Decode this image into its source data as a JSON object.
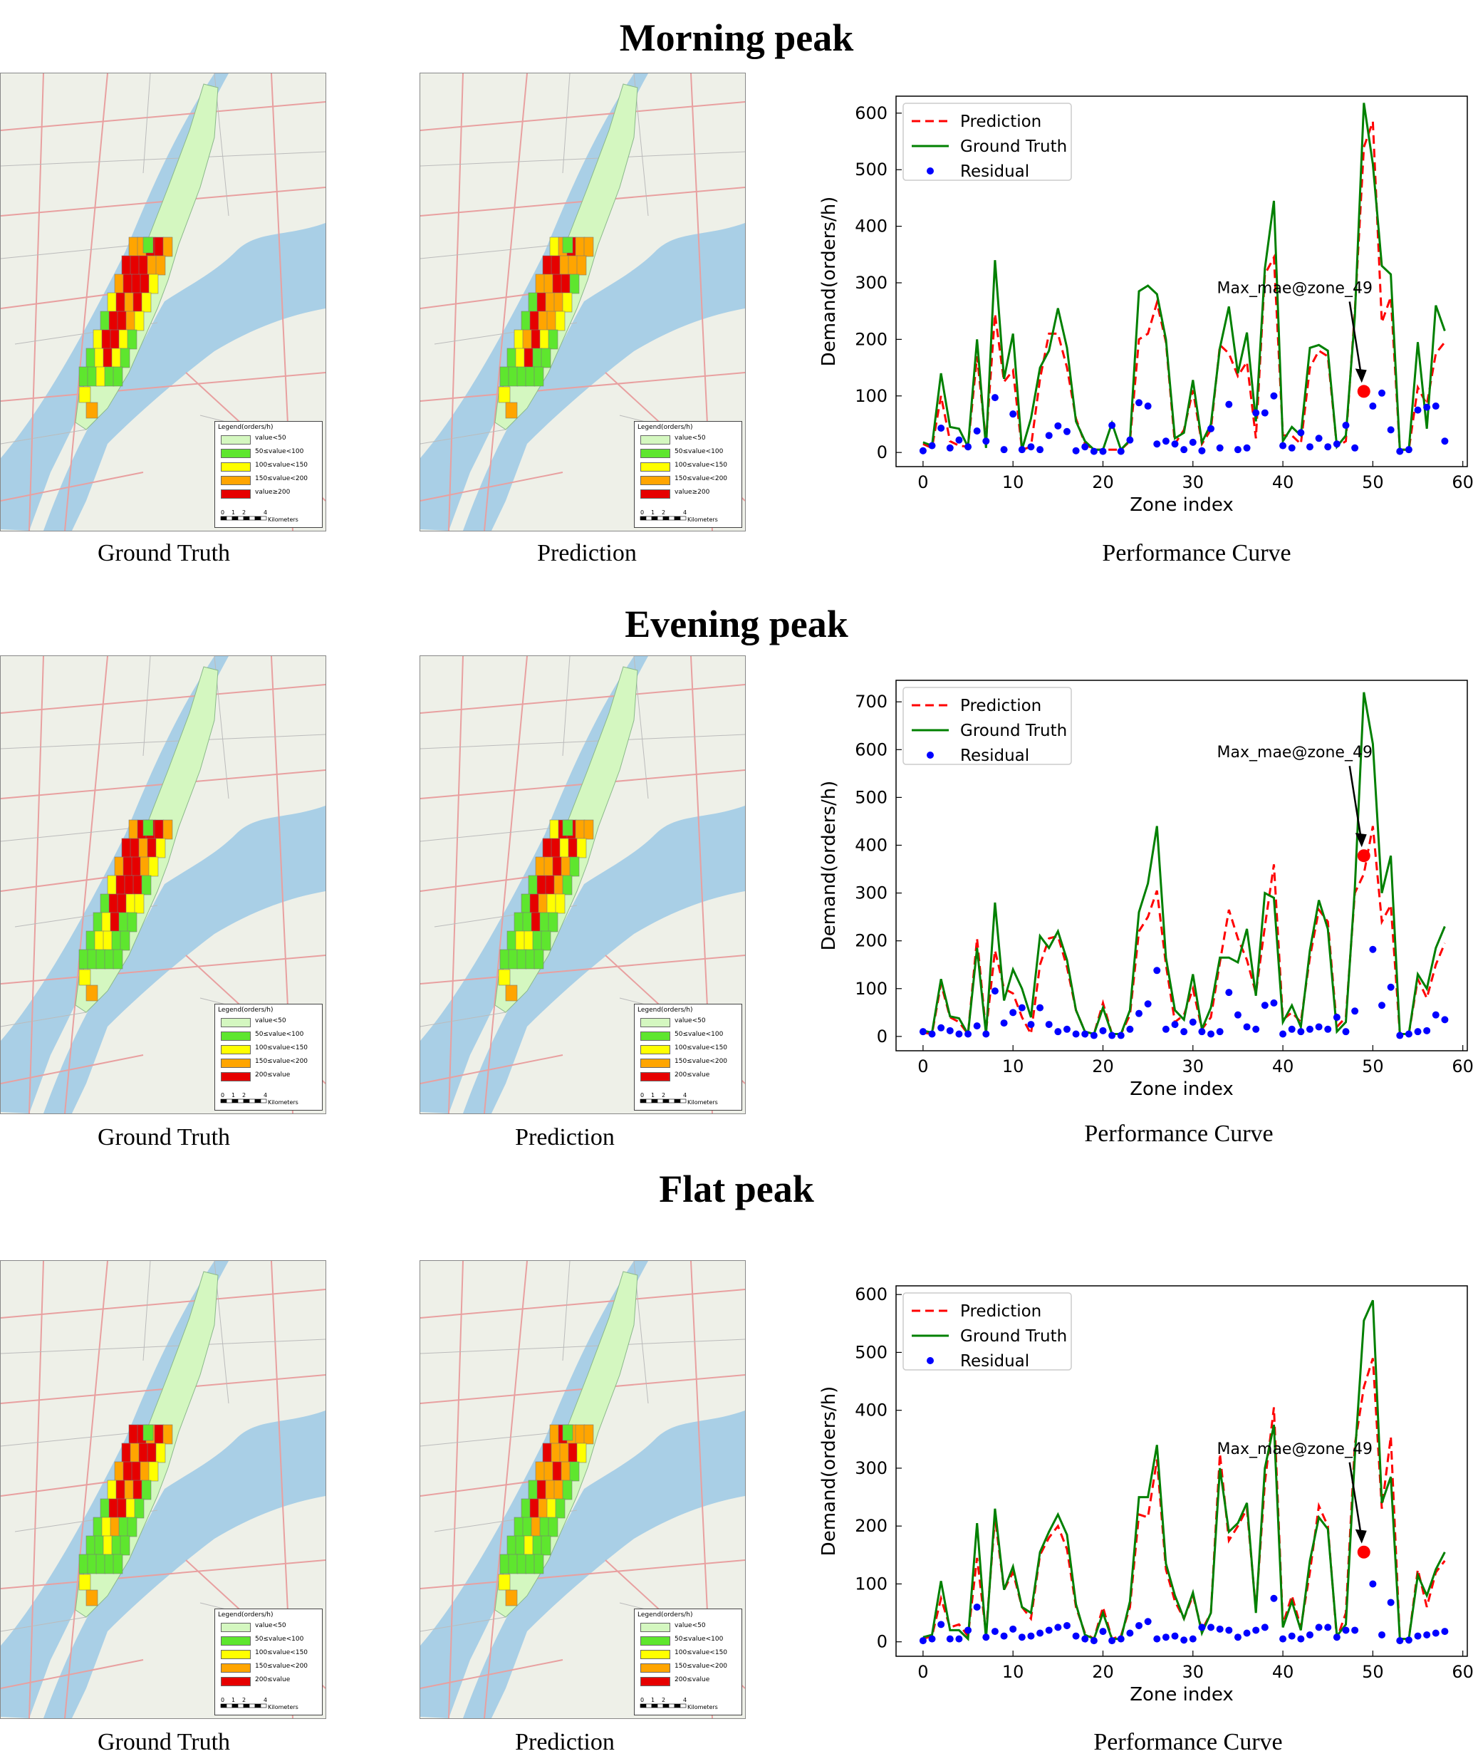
{
  "sections": [
    {
      "title": "Morning peak",
      "captions": {
        "ground_truth": "Ground Truth",
        "prediction": "Prediction",
        "curve": "Performance Curve"
      },
      "legend": {
        "title": "Legend(orders/h)",
        "items": [
          "value<50",
          "50≤value<100",
          "100≤value<150",
          "150≤value<200",
          "value≥200"
        ],
        "scale_label": "Kilometers",
        "scale_ticks": [
          "0",
          "1",
          "2",
          "4"
        ]
      }
    },
    {
      "title": "Evening peak",
      "captions": {
        "ground_truth": "Ground Truth",
        "prediction": "Prediction",
        "curve": "Performance Curve"
      },
      "legend": {
        "title": "Legend(orders/h)",
        "items": [
          "value<50",
          "50≤value<100",
          "100≤value<150",
          "150≤value<200",
          "200≤value"
        ],
        "scale_label": "Kilometers",
        "scale_ticks": [
          "0",
          "1",
          "2",
          "4"
        ]
      }
    },
    {
      "title": "Flat peak",
      "captions": {
        "ground_truth": "Ground Truth",
        "prediction": "Prediction",
        "curve": "Performance Curve"
      },
      "legend": {
        "title": "Legend(orders/h)",
        "items": [
          "value<50",
          "50≤value<100",
          "100≤value<150",
          "150≤value<200",
          "200≤value"
        ],
        "scale_label": "Kilometers",
        "scale_ticks": [
          "0",
          "1",
          "2",
          "4"
        ]
      }
    }
  ],
  "colors": {
    "legend": [
      "#d4f7c0",
      "#5ee62e",
      "#ffff00",
      "#ffa500",
      "#e60000"
    ],
    "prediction": "#ff0000",
    "ground_truth": "#008000",
    "residual": "#0000ff",
    "max_point": "#ff0000",
    "water": "#a9cfe6",
    "land": "#eef0e8"
  },
  "chart_data": [
    {
      "type": "line",
      "title": "",
      "xlabel": "Zone index",
      "ylabel": "Demand(orders/h)",
      "xlim": [
        -3,
        60.5
      ],
      "ylim": [
        -25,
        630
      ],
      "xticks": [
        0,
        10,
        20,
        30,
        40,
        50,
        60
      ],
      "yticks": [
        0,
        100,
        200,
        300,
        400,
        500,
        600
      ],
      "legend_position": "top-left",
      "annotation": {
        "text": "Max_mae@zone_49",
        "x": 49,
        "y": 108
      },
      "series": [
        {
          "name": "Prediction",
          "style": "dashed",
          "values": [
            15,
            8,
            100,
            20,
            12,
            10,
            170,
            20,
            245,
            125,
            145,
            5,
            10,
            130,
            210,
            210,
            150,
            60,
            15,
            5,
            5,
            5,
            5,
            20,
            200,
            210,
            265,
            195,
            15,
            40,
            110,
            15,
            40,
            190,
            175,
            135,
            160,
            25,
            315,
            345,
            30,
            30,
            15,
            150,
            180,
            170,
            10,
            20,
            250,
            540,
            585,
            230,
            275,
            5,
            5,
            115,
            85,
            175,
            195
          ]
        },
        {
          "name": "Ground Truth",
          "style": "solid",
          "values": [
            18,
            12,
            140,
            45,
            42,
            10,
            200,
            8,
            340,
            130,
            210,
            5,
            60,
            150,
            180,
            255,
            185,
            55,
            20,
            5,
            5,
            52,
            5,
            22,
            285,
            295,
            280,
            200,
            25,
            35,
            128,
            18,
            50,
            185,
            258,
            140,
            212,
            55,
            325,
            445,
            20,
            45,
            30,
            185,
            190,
            180,
            10,
            30,
            240,
            618,
            510,
            330,
            315,
            5,
            5,
            195,
            42,
            260,
            215
          ]
        },
        {
          "name": "Residual",
          "style": "markers",
          "values": [
            3,
            12,
            43,
            8,
            22,
            10,
            38,
            20,
            97,
            5,
            68,
            5,
            10,
            5,
            30,
            47,
            37,
            3,
            10,
            2,
            2,
            48,
            2,
            22,
            88,
            82,
            15,
            20,
            15,
            5,
            18,
            3,
            42,
            8,
            85,
            5,
            8,
            70,
            70,
            100,
            12,
            8,
            35,
            10,
            25,
            10,
            15,
            48,
            8,
            108,
            82,
            105,
            40,
            2,
            5,
            75,
            80,
            82,
            20
          ]
        }
      ]
    },
    {
      "type": "line",
      "title": "",
      "xlabel": "Zone index",
      "ylabel": "Demand(orders/h)",
      "xlim": [
        -3,
        60.5
      ],
      "ylim": [
        -30,
        745
      ],
      "xticks": [
        0,
        10,
        20,
        30,
        40,
        50,
        60
      ],
      "yticks": [
        0,
        100,
        200,
        300,
        400,
        500,
        600,
        700
      ],
      "legend_position": "top-left",
      "annotation": {
        "text": "Max_mae@zone_49",
        "x": 49,
        "y": 378
      },
      "series": [
        {
          "name": "Prediction",
          "style": "dashed",
          "values": [
            8,
            5,
            110,
            40,
            30,
            5,
            205,
            10,
            180,
            100,
            90,
            40,
            5,
            150,
            205,
            210,
            145,
            55,
            10,
            5,
            70,
            5,
            5,
            45,
            220,
            250,
            305,
            150,
            30,
            45,
            100,
            15,
            40,
            155,
            265,
            205,
            160,
            90,
            230,
            360,
            35,
            50,
            30,
            165,
            265,
            240,
            20,
            40,
            300,
            340,
            440,
            240,
            275,
            5,
            5,
            120,
            80,
            150,
            195
          ]
        },
        {
          "name": "Ground Truth",
          "style": "solid",
          "values": [
            12,
            8,
            120,
            42,
            38,
            5,
            185,
            5,
            280,
            75,
            140,
            100,
            40,
            210,
            185,
            220,
            160,
            55,
            10,
            5,
            60,
            5,
            5,
            55,
            260,
            320,
            440,
            165,
            55,
            35,
            130,
            15,
            60,
            165,
            165,
            155,
            225,
            85,
            300,
            290,
            30,
            65,
            20,
            180,
            285,
            225,
            10,
            30,
            310,
            720,
            612,
            300,
            378,
            5,
            5,
            130,
            100,
            185,
            230
          ]
        },
        {
          "name": "Residual",
          "style": "markers",
          "values": [
            10,
            5,
            18,
            12,
            5,
            5,
            22,
            5,
            95,
            28,
            50,
            60,
            25,
            60,
            25,
            10,
            15,
            5,
            5,
            2,
            12,
            2,
            2,
            15,
            48,
            68,
            138,
            15,
            25,
            10,
            30,
            10,
            5,
            10,
            92,
            45,
            20,
            15,
            65,
            70,
            5,
            15,
            10,
            15,
            20,
            15,
            40,
            10,
            53,
            378,
            182,
            65,
            103,
            2,
            5,
            10,
            12,
            45,
            35
          ]
        }
      ]
    },
    {
      "type": "line",
      "title": "",
      "xlabel": "Zone index",
      "ylabel": "Demand(orders/h)",
      "xlim": [
        -3,
        60.5
      ],
      "ylim": [
        -25,
        615
      ],
      "xticks": [
        0,
        10,
        20,
        30,
        40,
        50,
        60
      ],
      "yticks": [
        0,
        100,
        200,
        300,
        400,
        500,
        600
      ],
      "legend_position": "top-left",
      "annotation": {
        "text": "Max_mae@zone_49",
        "x": 49,
        "y": 155
      },
      "series": [
        {
          "name": "Prediction",
          "style": "dashed",
          "values": [
            5,
            10,
            75,
            25,
            30,
            10,
            145,
            15,
            215,
            90,
            120,
            60,
            40,
            150,
            180,
            200,
            160,
            60,
            15,
            5,
            60,
            5,
            10,
            60,
            220,
            215,
            315,
            125,
            70,
            40,
            80,
            20,
            50,
            325,
            175,
            200,
            230,
            55,
            275,
            405,
            30,
            80,
            25,
            120,
            235,
            200,
            5,
            50,
            340,
            440,
            490,
            230,
            355,
            5,
            5,
            125,
            60,
            120,
            140
          ]
        },
        {
          "name": "Ground Truth",
          "style": "solid",
          "values": [
            8,
            12,
            105,
            20,
            20,
            5,
            205,
            5,
            230,
            90,
            130,
            60,
            50,
            155,
            190,
            220,
            185,
            65,
            12,
            5,
            50,
            5,
            5,
            70,
            250,
            250,
            340,
            135,
            80,
            40,
            85,
            15,
            50,
            300,
            190,
            205,
            240,
            50,
            300,
            375,
            25,
            70,
            20,
            140,
            215,
            195,
            10,
            30,
            320,
            555,
            590,
            240,
            285,
            5,
            5,
            115,
            80,
            125,
            155
          ]
        },
        {
          "name": "Residual",
          "style": "markers",
          "values": [
            2,
            5,
            30,
            5,
            5,
            20,
            60,
            8,
            18,
            10,
            22,
            8,
            10,
            15,
            20,
            25,
            28,
            10,
            5,
            2,
            18,
            2,
            5,
            15,
            28,
            35,
            5,
            8,
            10,
            3,
            5,
            25,
            25,
            22,
            20,
            8,
            15,
            20,
            25,
            75,
            5,
            10,
            5,
            12,
            25,
            25,
            8,
            20,
            20,
            155,
            100,
            12,
            68,
            2,
            3,
            10,
            12,
            15,
            18
          ]
        }
      ]
    }
  ]
}
